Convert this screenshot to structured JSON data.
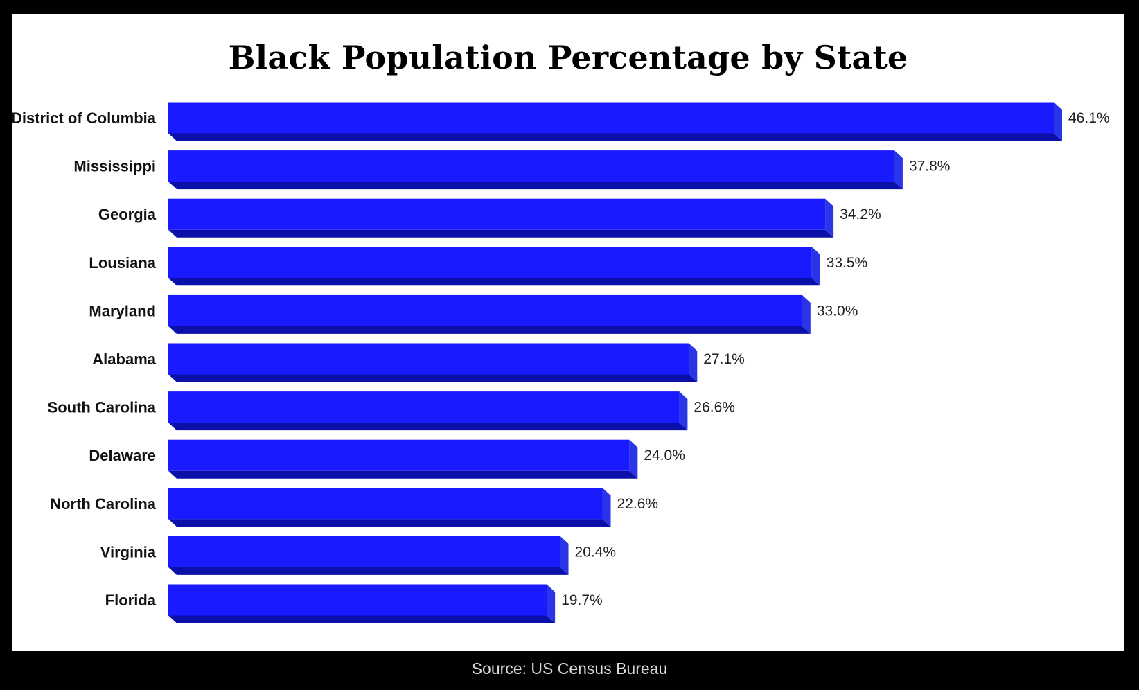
{
  "chart_data": {
    "type": "bar",
    "orientation": "horizontal",
    "title": "Black Population Percentage by State",
    "categories": [
      "District of Columbia",
      "Mississippi",
      "Georgia",
      "Lousiana",
      "Maryland",
      "Alabama",
      "South Carolina",
      "Delaware",
      "North Carolina",
      "Virginia",
      "Florida"
    ],
    "values": [
      46.1,
      37.8,
      34.2,
      33.5,
      33.0,
      27.1,
      26.6,
      24.0,
      22.6,
      20.4,
      19.7
    ],
    "value_labels": [
      "46.1%",
      "37.8%",
      "34.2%",
      "33.5%",
      "33.0%",
      "27.1%",
      "26.6%",
      "24.0%",
      "22.6%",
      "20.4%",
      "19.7%"
    ],
    "xlim": [
      0,
      46.1
    ],
    "grid": false,
    "bar_color": "#1a1aff",
    "bar_side_color": "#2a35e8",
    "bar_bottom_color": "#0a10a8"
  },
  "source": "Source: US Census Bureau"
}
